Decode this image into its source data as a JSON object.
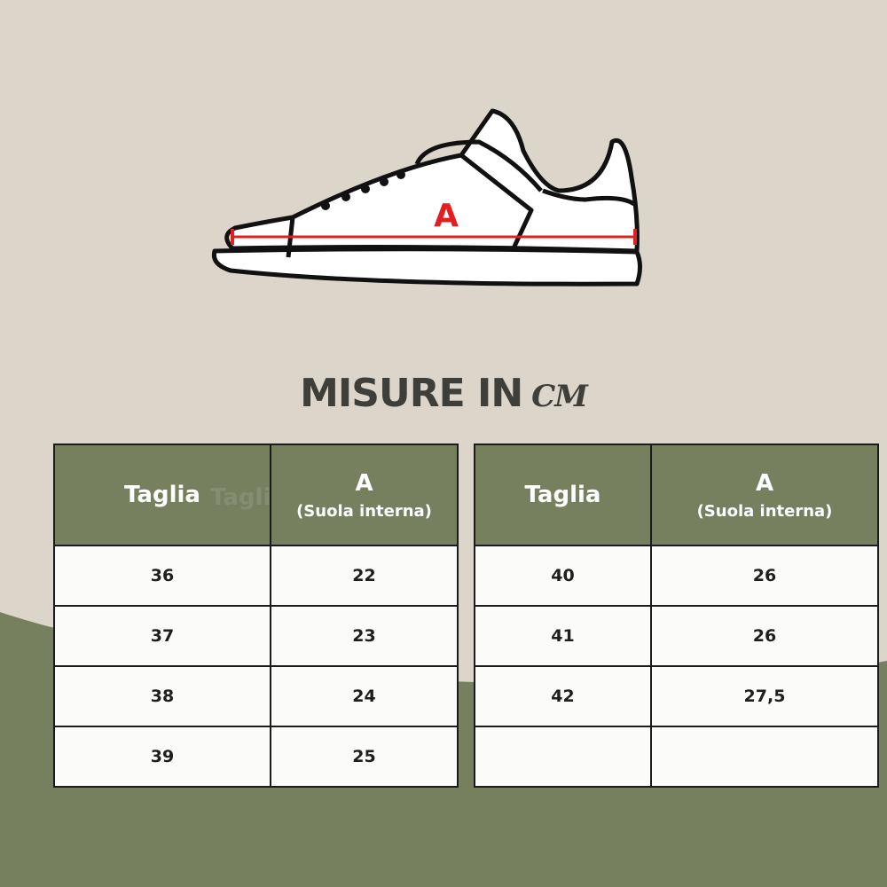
{
  "title": {
    "main": "MISURE IN",
    "unit": "CM"
  },
  "diagram": {
    "label": "A",
    "label_color": "#e02020"
  },
  "colors": {
    "background": "#dbd5ca",
    "accent_green": "#76805f",
    "text_dark": "#3f3f3a"
  },
  "tables": [
    {
      "headers": {
        "size": "Taglia",
        "measure": "A",
        "measure_sub": "(Suola interna)"
      },
      "rows": [
        [
          "36",
          "22"
        ],
        [
          "37",
          "23"
        ],
        [
          "38",
          "24"
        ],
        [
          "39",
          "25"
        ]
      ]
    },
    {
      "headers": {
        "size": "Taglia",
        "measure": "A",
        "measure_sub": "(Suola interna)"
      },
      "rows": [
        [
          "40",
          "26"
        ],
        [
          "41",
          "26"
        ],
        [
          "42",
          "27,5"
        ],
        [
          "",
          ""
        ]
      ]
    }
  ]
}
